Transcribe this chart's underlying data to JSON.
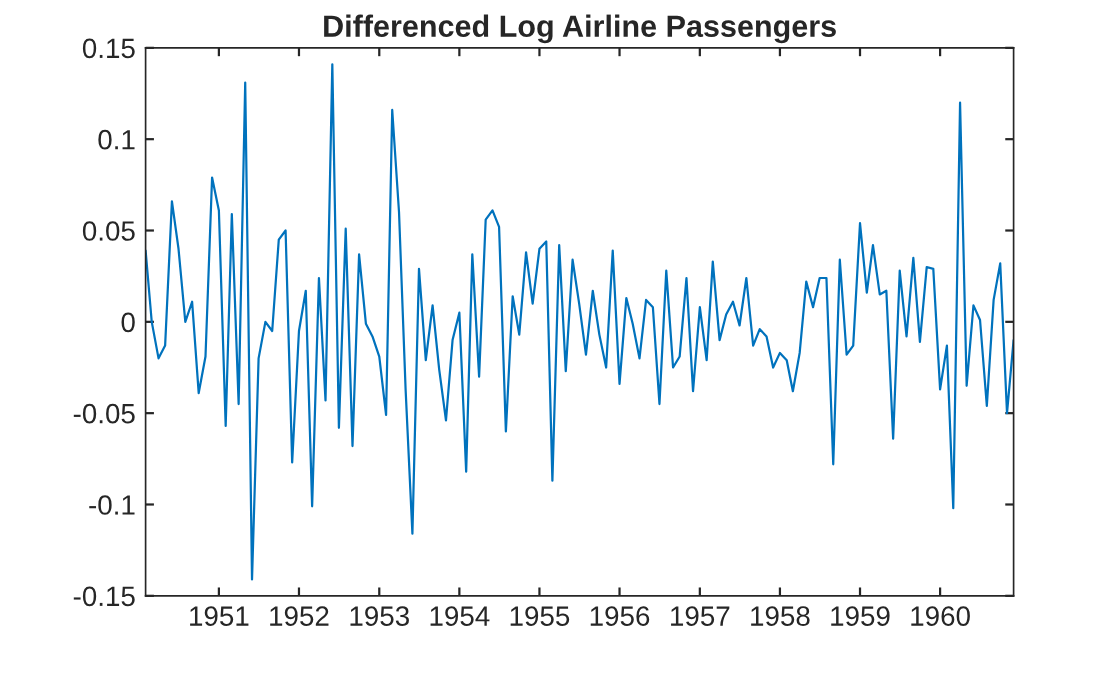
{
  "chart_data": {
    "type": "line",
    "title": "Differenced Log Airline Passengers",
    "x": [
      "1950-02",
      "1950-03",
      "1950-04",
      "1950-05",
      "1950-06",
      "1950-07",
      "1950-08",
      "1950-09",
      "1950-10",
      "1950-11",
      "1950-12",
      "1951-01",
      "1951-02",
      "1951-03",
      "1951-04",
      "1951-05",
      "1951-06",
      "1951-07",
      "1951-08",
      "1951-09",
      "1951-10",
      "1951-11",
      "1951-12",
      "1952-01",
      "1952-02",
      "1952-03",
      "1952-04",
      "1952-05",
      "1952-06",
      "1952-07",
      "1952-08",
      "1952-09",
      "1952-10",
      "1952-11",
      "1952-12",
      "1953-01",
      "1953-02",
      "1953-03",
      "1953-04",
      "1953-05",
      "1953-06",
      "1953-07",
      "1953-08",
      "1953-09",
      "1953-10",
      "1953-11",
      "1953-12",
      "1954-01",
      "1954-02",
      "1954-03",
      "1954-04",
      "1954-05",
      "1954-06",
      "1954-07",
      "1954-08",
      "1954-09",
      "1954-10",
      "1954-11",
      "1954-12",
      "1955-01",
      "1955-02",
      "1955-03",
      "1955-04",
      "1955-05",
      "1955-06",
      "1955-07",
      "1955-08",
      "1955-09",
      "1955-10",
      "1955-11",
      "1955-12",
      "1956-01",
      "1956-02",
      "1956-03",
      "1956-04",
      "1956-05",
      "1956-06",
      "1956-07",
      "1956-08",
      "1956-09",
      "1956-10",
      "1956-11",
      "1956-12",
      "1957-01",
      "1957-02",
      "1957-03",
      "1957-04",
      "1957-05",
      "1957-06",
      "1957-07",
      "1957-08",
      "1957-09",
      "1957-10",
      "1957-11",
      "1957-12",
      "1958-01",
      "1958-02",
      "1958-03",
      "1958-04",
      "1958-05",
      "1958-06",
      "1958-07",
      "1958-08",
      "1958-09",
      "1958-10",
      "1958-11",
      "1958-12",
      "1959-01",
      "1959-02",
      "1959-03",
      "1959-04",
      "1959-05",
      "1959-06",
      "1959-07",
      "1959-08",
      "1959-09",
      "1959-10",
      "1959-11",
      "1959-12",
      "1960-01",
      "1960-02",
      "1960-03",
      "1960-04",
      "1960-05",
      "1960-06",
      "1960-07",
      "1960-08",
      "1960-09",
      "1960-10",
      "1960-11",
      "1960-12"
    ],
    "series": [
      {
        "color": "#0072bd",
        "values": [
          0.039,
          0.0,
          -0.02,
          -0.013,
          0.066,
          0.04,
          0.0,
          0.011,
          -0.039,
          -0.019,
          0.079,
          0.061,
          -0.057,
          0.059,
          -0.045,
          0.131,
          -0.141,
          -0.02,
          0.0,
          -0.005,
          0.045,
          0.05,
          -0.077,
          -0.005,
          0.017,
          -0.101,
          0.024,
          -0.043,
          0.141,
          -0.058,
          0.051,
          -0.068,
          0.037,
          -0.001,
          -0.008,
          -0.019,
          -0.051,
          0.116,
          0.06,
          -0.037,
          -0.116,
          0.029,
          -0.021,
          0.009,
          -0.026,
          -0.054,
          -0.01,
          0.005,
          -0.082,
          0.037,
          -0.03,
          0.056,
          0.061,
          0.052,
          -0.06,
          0.014,
          -0.007,
          0.038,
          0.01,
          0.04,
          0.044,
          -0.087,
          0.042,
          -0.027,
          0.034,
          0.01,
          -0.018,
          0.017,
          -0.007,
          -0.025,
          0.039,
          -0.034,
          0.013,
          -0.001,
          -0.02,
          0.012,
          0.008,
          -0.045,
          0.028,
          -0.025,
          -0.019,
          0.024,
          -0.038,
          0.008,
          -0.021,
          0.033,
          -0.01,
          0.004,
          0.011,
          -0.002,
          0.024,
          -0.013,
          -0.004,
          -0.008,
          -0.025,
          -0.017,
          -0.021,
          -0.038,
          -0.017,
          0.022,
          0.008,
          0.024,
          0.024,
          -0.078,
          0.034,
          -0.018,
          -0.013,
          0.054,
          0.016,
          0.042,
          0.015,
          0.017,
          -0.064,
          0.028,
          -0.008,
          0.035,
          -0.011,
          0.03,
          0.029,
          -0.037,
          -0.013,
          -0.102,
          0.12,
          -0.035,
          0.009,
          0.001,
          -0.046,
          0.012,
          0.032,
          -0.05,
          -0.01
        ]
      }
    ],
    "xlim": [
      "1950-02",
      "1960-12"
    ],
    "xticks": [
      {
        "value": "1951",
        "label": "1951"
      },
      {
        "value": "1952",
        "label": "1952"
      },
      {
        "value": "1953",
        "label": "1953"
      },
      {
        "value": "1954",
        "label": "1954"
      },
      {
        "value": "1955",
        "label": "1955"
      },
      {
        "value": "1956",
        "label": "1956"
      },
      {
        "value": "1957",
        "label": "1957"
      },
      {
        "value": "1958",
        "label": "1958"
      },
      {
        "value": "1959",
        "label": "1959"
      },
      {
        "value": "1960",
        "label": "1960"
      }
    ],
    "ylim": [
      -0.15,
      0.15
    ],
    "yticks": [
      {
        "value": -0.15,
        "label": "-0.15"
      },
      {
        "value": -0.1,
        "label": "-0.1"
      },
      {
        "value": -0.05,
        "label": "-0.05"
      },
      0,
      {
        "value": 0.05,
        "label": "0.05"
      },
      {
        "value": 0.1,
        "label": "0.1"
      },
      {
        "value": 0.15,
        "label": "0.15"
      }
    ],
    "grid": false,
    "legend": false,
    "marker": "none",
    "line_style": "solid"
  }
}
